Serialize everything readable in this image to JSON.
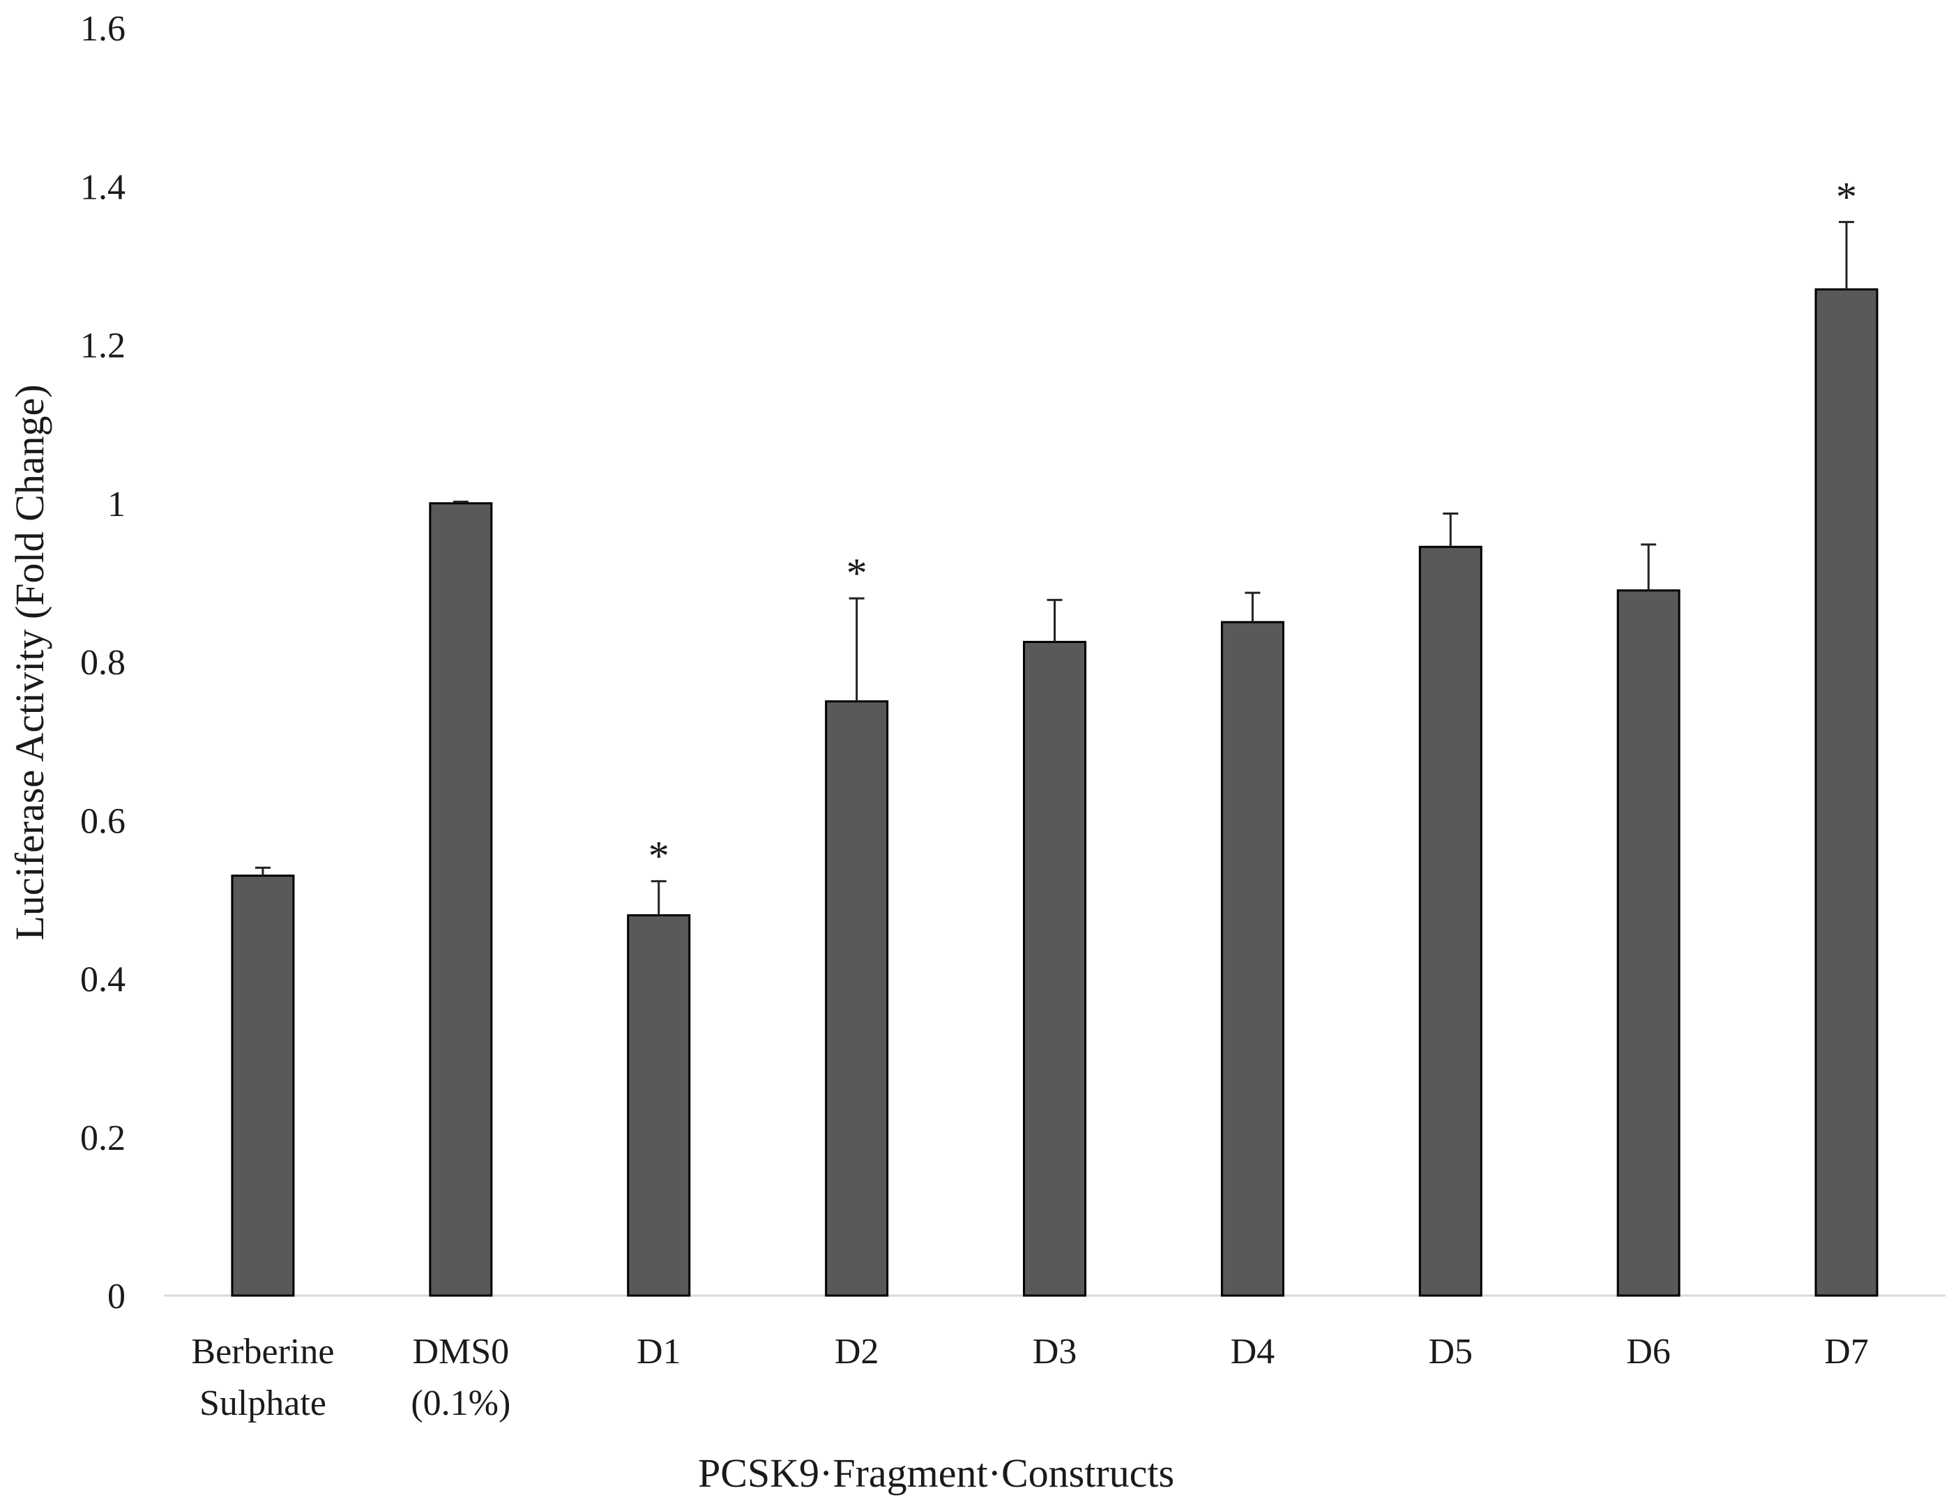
{
  "chart_data": {
    "type": "bar",
    "title": "",
    "xlabel": "PCSK9·Fragment·Constructs",
    "ylabel": "Luciferase Activity (Fold Change)",
    "ylim": [
      0,
      1.6
    ],
    "yticks": [
      0,
      0.2,
      0.4,
      0.6,
      0.8,
      1,
      1.2,
      1.4,
      1.6
    ],
    "ytick_labels": [
      "0",
      "0.2",
      "0.4",
      "0.6",
      "0.8",
      "1",
      "1.2",
      "1.4",
      "1.6"
    ],
    "categories": [
      [
        "Berberine",
        "Sulphate"
      ],
      [
        "DMS0",
        "(0.1%)"
      ],
      [
        "D1"
      ],
      [
        "D2"
      ],
      [
        "D3"
      ],
      [
        "D4"
      ],
      [
        "D5"
      ],
      [
        "D6"
      ],
      [
        "D7"
      ]
    ],
    "values": [
      0.53,
      1.0,
      0.48,
      0.75,
      0.825,
      0.85,
      0.945,
      0.89,
      1.27
    ],
    "errors": [
      0.01,
      0.002,
      0.043,
      0.13,
      0.053,
      0.037,
      0.042,
      0.058,
      0.085
    ],
    "significance": [
      "",
      "",
      "*",
      "*",
      "",
      "",
      "",
      "",
      "*"
    ],
    "grid": false,
    "legend": "none",
    "colors": {
      "bar": "#595959",
      "bar_edge": "#000000",
      "axis": "#d9d9d9",
      "error_bar": "#222222"
    }
  }
}
